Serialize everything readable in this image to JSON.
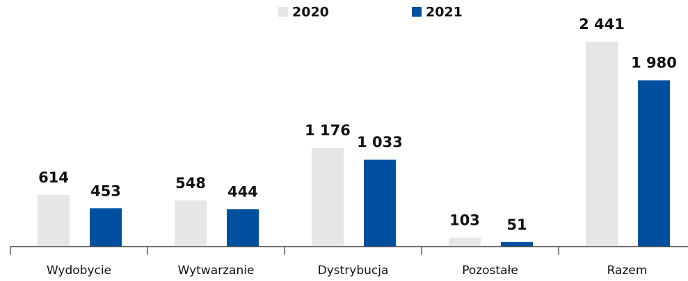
{
  "chart_data": {
    "type": "bar",
    "categories": [
      "Wydobycie",
      "Wytwarzanie",
      "Dystrybucja",
      "Pozostałe",
      "Razem"
    ],
    "series": [
      {
        "name": "2020",
        "color": "#e6e6e6",
        "values": [
          614,
          548,
          1176,
          103,
          2441
        ],
        "value_labels": [
          "614",
          "548",
          "1 176",
          "103",
          "2 441"
        ]
      },
      {
        "name": "2021",
        "color": "#00509f",
        "values": [
          453,
          444,
          1033,
          51,
          1980
        ],
        "value_labels": [
          "453",
          "444",
          "1 033",
          "51",
          "1 980"
        ]
      }
    ],
    "legend": "top"
  }
}
